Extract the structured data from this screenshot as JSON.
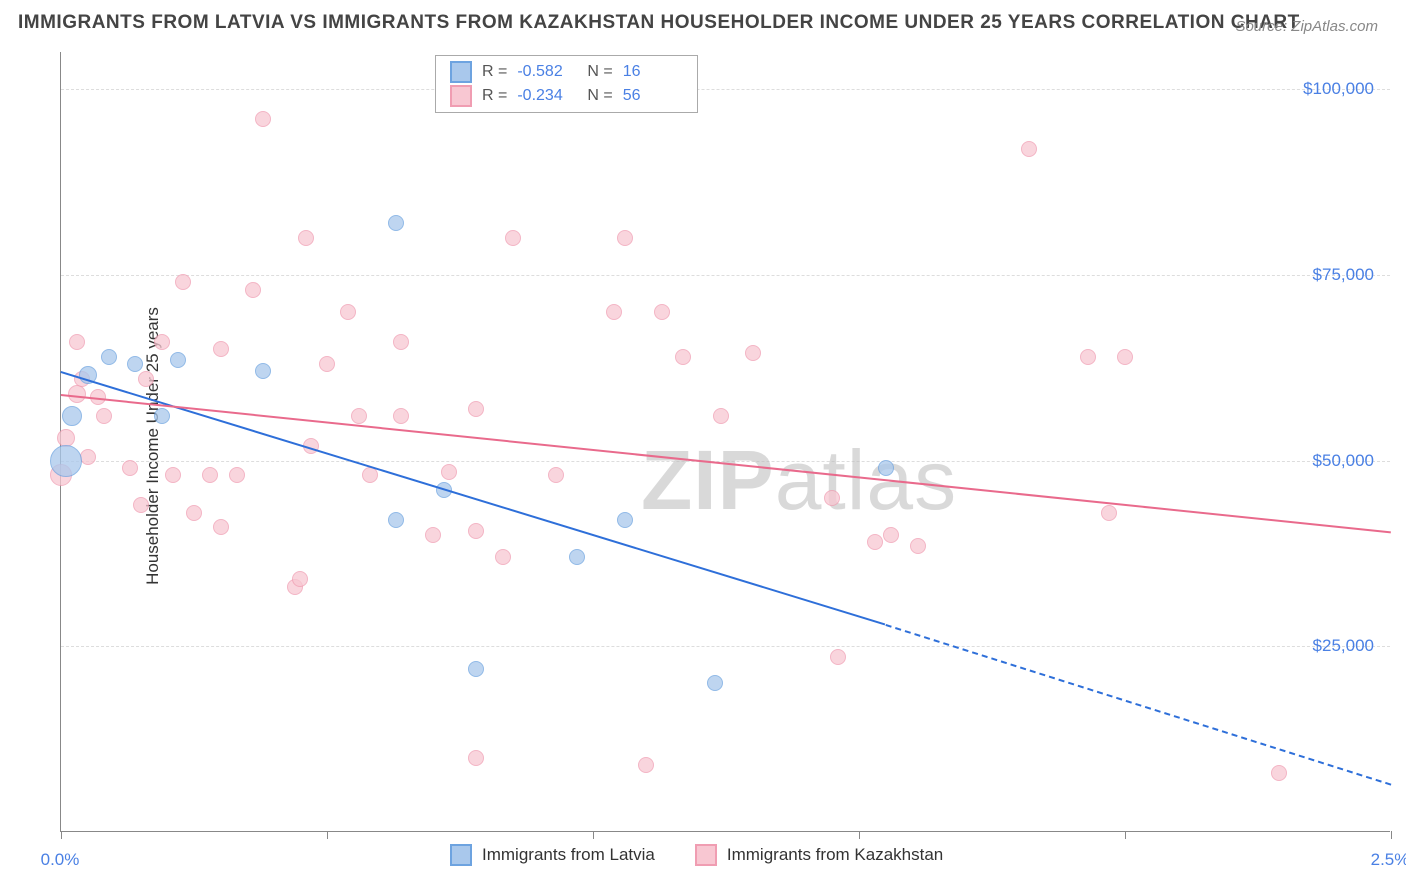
{
  "title": "IMMIGRANTS FROM LATVIA VS IMMIGRANTS FROM KAZAKHSTAN HOUSEHOLDER INCOME UNDER 25 YEARS CORRELATION CHART",
  "source": "Source: ZipAtlas.com",
  "watermark": {
    "bold": "ZIP",
    "rest": "atlas"
  },
  "y_axis_title": "Householder Income Under 25 years",
  "axes": {
    "x": {
      "min": 0.0,
      "max": 2.5,
      "ticks": [
        0.0,
        0.5,
        1.0,
        1.5,
        2.0,
        2.5
      ],
      "tick_labels": {
        "0": "0.0%",
        "2.5": "2.5%"
      }
    },
    "y": {
      "min": 0,
      "max": 105000,
      "ticks": [
        25000,
        50000,
        75000,
        100000
      ],
      "tick_labels": {
        "25000": "$25,000",
        "50000": "$50,000",
        "75000": "$75,000",
        "100000": "$100,000"
      }
    }
  },
  "colors": {
    "blue_fill": "#a9c8ec",
    "blue_stroke": "#6da3e0",
    "pink_fill": "#f8c7d2",
    "pink_stroke": "#f09db2",
    "blue_line": "#2e6fd9",
    "pink_line": "#e96a8c",
    "axis_label": "#4a80e4",
    "grid": "#dddddd",
    "text": "#444444",
    "ytitle": "#333333"
  },
  "series": [
    {
      "name": "Immigrants from Latvia",
      "color_key": "blue",
      "R": "-0.582",
      "N": "16",
      "regression": {
        "x1": 0.0,
        "y1": 62000,
        "x2": 1.55,
        "y2": 28000,
        "dash_from_x": 1.55,
        "dash_to_x": 2.5,
        "dash_to_y": 6500
      },
      "points": [
        {
          "x": 0.01,
          "y": 50000,
          "r": 16
        },
        {
          "x": 0.02,
          "y": 56000,
          "r": 10
        },
        {
          "x": 0.05,
          "y": 61500,
          "r": 9
        },
        {
          "x": 0.09,
          "y": 64000,
          "r": 8
        },
        {
          "x": 0.14,
          "y": 63000,
          "r": 8
        },
        {
          "x": 0.19,
          "y": 56000,
          "r": 8
        },
        {
          "x": 0.22,
          "y": 63500,
          "r": 8
        },
        {
          "x": 0.38,
          "y": 62000,
          "r": 8
        },
        {
          "x": 0.63,
          "y": 82000,
          "r": 8
        },
        {
          "x": 0.63,
          "y": 42000,
          "r": 8
        },
        {
          "x": 0.72,
          "y": 46000,
          "r": 8
        },
        {
          "x": 0.78,
          "y": 22000,
          "r": 8
        },
        {
          "x": 0.97,
          "y": 37000,
          "r": 8
        },
        {
          "x": 1.06,
          "y": 42000,
          "r": 8
        },
        {
          "x": 1.23,
          "y": 20000,
          "r": 8
        },
        {
          "x": 1.55,
          "y": 49000,
          "r": 8
        }
      ]
    },
    {
      "name": "Immigrants from Kazakhstan",
      "color_key": "pink",
      "R": "-0.234",
      "N": "56",
      "regression": {
        "x1": 0.0,
        "y1": 59000,
        "x2": 2.5,
        "y2": 40500
      },
      "points": [
        {
          "x": 0.0,
          "y": 48000,
          "r": 11
        },
        {
          "x": 0.01,
          "y": 53000,
          "r": 9
        },
        {
          "x": 0.03,
          "y": 59000,
          "r": 9
        },
        {
          "x": 0.03,
          "y": 66000,
          "r": 8
        },
        {
          "x": 0.04,
          "y": 61000,
          "r": 8
        },
        {
          "x": 0.07,
          "y": 58500,
          "r": 8
        },
        {
          "x": 0.05,
          "y": 50500,
          "r": 8
        },
        {
          "x": 0.13,
          "y": 49000,
          "r": 8
        },
        {
          "x": 0.16,
          "y": 61000,
          "r": 8
        },
        {
          "x": 0.15,
          "y": 44000,
          "r": 8
        },
        {
          "x": 0.21,
          "y": 48000,
          "r": 8
        },
        {
          "x": 0.23,
          "y": 74000,
          "r": 8
        },
        {
          "x": 0.25,
          "y": 43000,
          "r": 8
        },
        {
          "x": 0.28,
          "y": 48000,
          "r": 8
        },
        {
          "x": 0.3,
          "y": 65000,
          "r": 8
        },
        {
          "x": 0.3,
          "y": 41000,
          "r": 8
        },
        {
          "x": 0.33,
          "y": 48000,
          "r": 8
        },
        {
          "x": 0.36,
          "y": 73000,
          "r": 8
        },
        {
          "x": 0.38,
          "y": 96000,
          "r": 8
        },
        {
          "x": 0.44,
          "y": 33000,
          "r": 8
        },
        {
          "x": 0.45,
          "y": 34000,
          "r": 8
        },
        {
          "x": 0.46,
          "y": 80000,
          "r": 8
        },
        {
          "x": 0.5,
          "y": 63000,
          "r": 8
        },
        {
          "x": 0.54,
          "y": 70000,
          "r": 8
        },
        {
          "x": 0.56,
          "y": 56000,
          "r": 8
        },
        {
          "x": 0.47,
          "y": 52000,
          "r": 8
        },
        {
          "x": 0.58,
          "y": 48000,
          "r": 8
        },
        {
          "x": 0.64,
          "y": 56000,
          "r": 8
        },
        {
          "x": 0.64,
          "y": 66000,
          "r": 8
        },
        {
          "x": 0.7,
          "y": 40000,
          "r": 8
        },
        {
          "x": 0.73,
          "y": 48500,
          "r": 8
        },
        {
          "x": 0.78,
          "y": 40500,
          "r": 8
        },
        {
          "x": 0.78,
          "y": 57000,
          "r": 8
        },
        {
          "x": 0.83,
          "y": 37000,
          "r": 8
        },
        {
          "x": 0.85,
          "y": 80000,
          "r": 8
        },
        {
          "x": 0.93,
          "y": 48000,
          "r": 8
        },
        {
          "x": 0.78,
          "y": 10000,
          "r": 8
        },
        {
          "x": 1.04,
          "y": 70000,
          "r": 8
        },
        {
          "x": 1.06,
          "y": 80000,
          "r": 8
        },
        {
          "x": 1.13,
          "y": 70000,
          "r": 8
        },
        {
          "x": 1.17,
          "y": 64000,
          "r": 8
        },
        {
          "x": 1.24,
          "y": 56000,
          "r": 8
        },
        {
          "x": 1.3,
          "y": 64500,
          "r": 8
        },
        {
          "x": 1.45,
          "y": 45000,
          "r": 8
        },
        {
          "x": 1.46,
          "y": 23500,
          "r": 8
        },
        {
          "x": 1.53,
          "y": 39000,
          "r": 8
        },
        {
          "x": 1.56,
          "y": 40000,
          "r": 8
        },
        {
          "x": 1.61,
          "y": 38500,
          "r": 8
        },
        {
          "x": 1.82,
          "y": 92000,
          "r": 8
        },
        {
          "x": 1.93,
          "y": 64000,
          "r": 8
        },
        {
          "x": 1.97,
          "y": 43000,
          "r": 8
        },
        {
          "x": 2.0,
          "y": 64000,
          "r": 8
        },
        {
          "x": 2.29,
          "y": 8000,
          "r": 8
        },
        {
          "x": 1.1,
          "y": 9000,
          "r": 8
        },
        {
          "x": 0.08,
          "y": 56000,
          "r": 8
        },
        {
          "x": 0.19,
          "y": 66000,
          "r": 8
        }
      ]
    }
  ],
  "legend_bottom": [
    {
      "label": "Immigrants from Latvia",
      "color_key": "blue"
    },
    {
      "label": "Immigrants from Kazakhstan",
      "color_key": "pink"
    }
  ]
}
